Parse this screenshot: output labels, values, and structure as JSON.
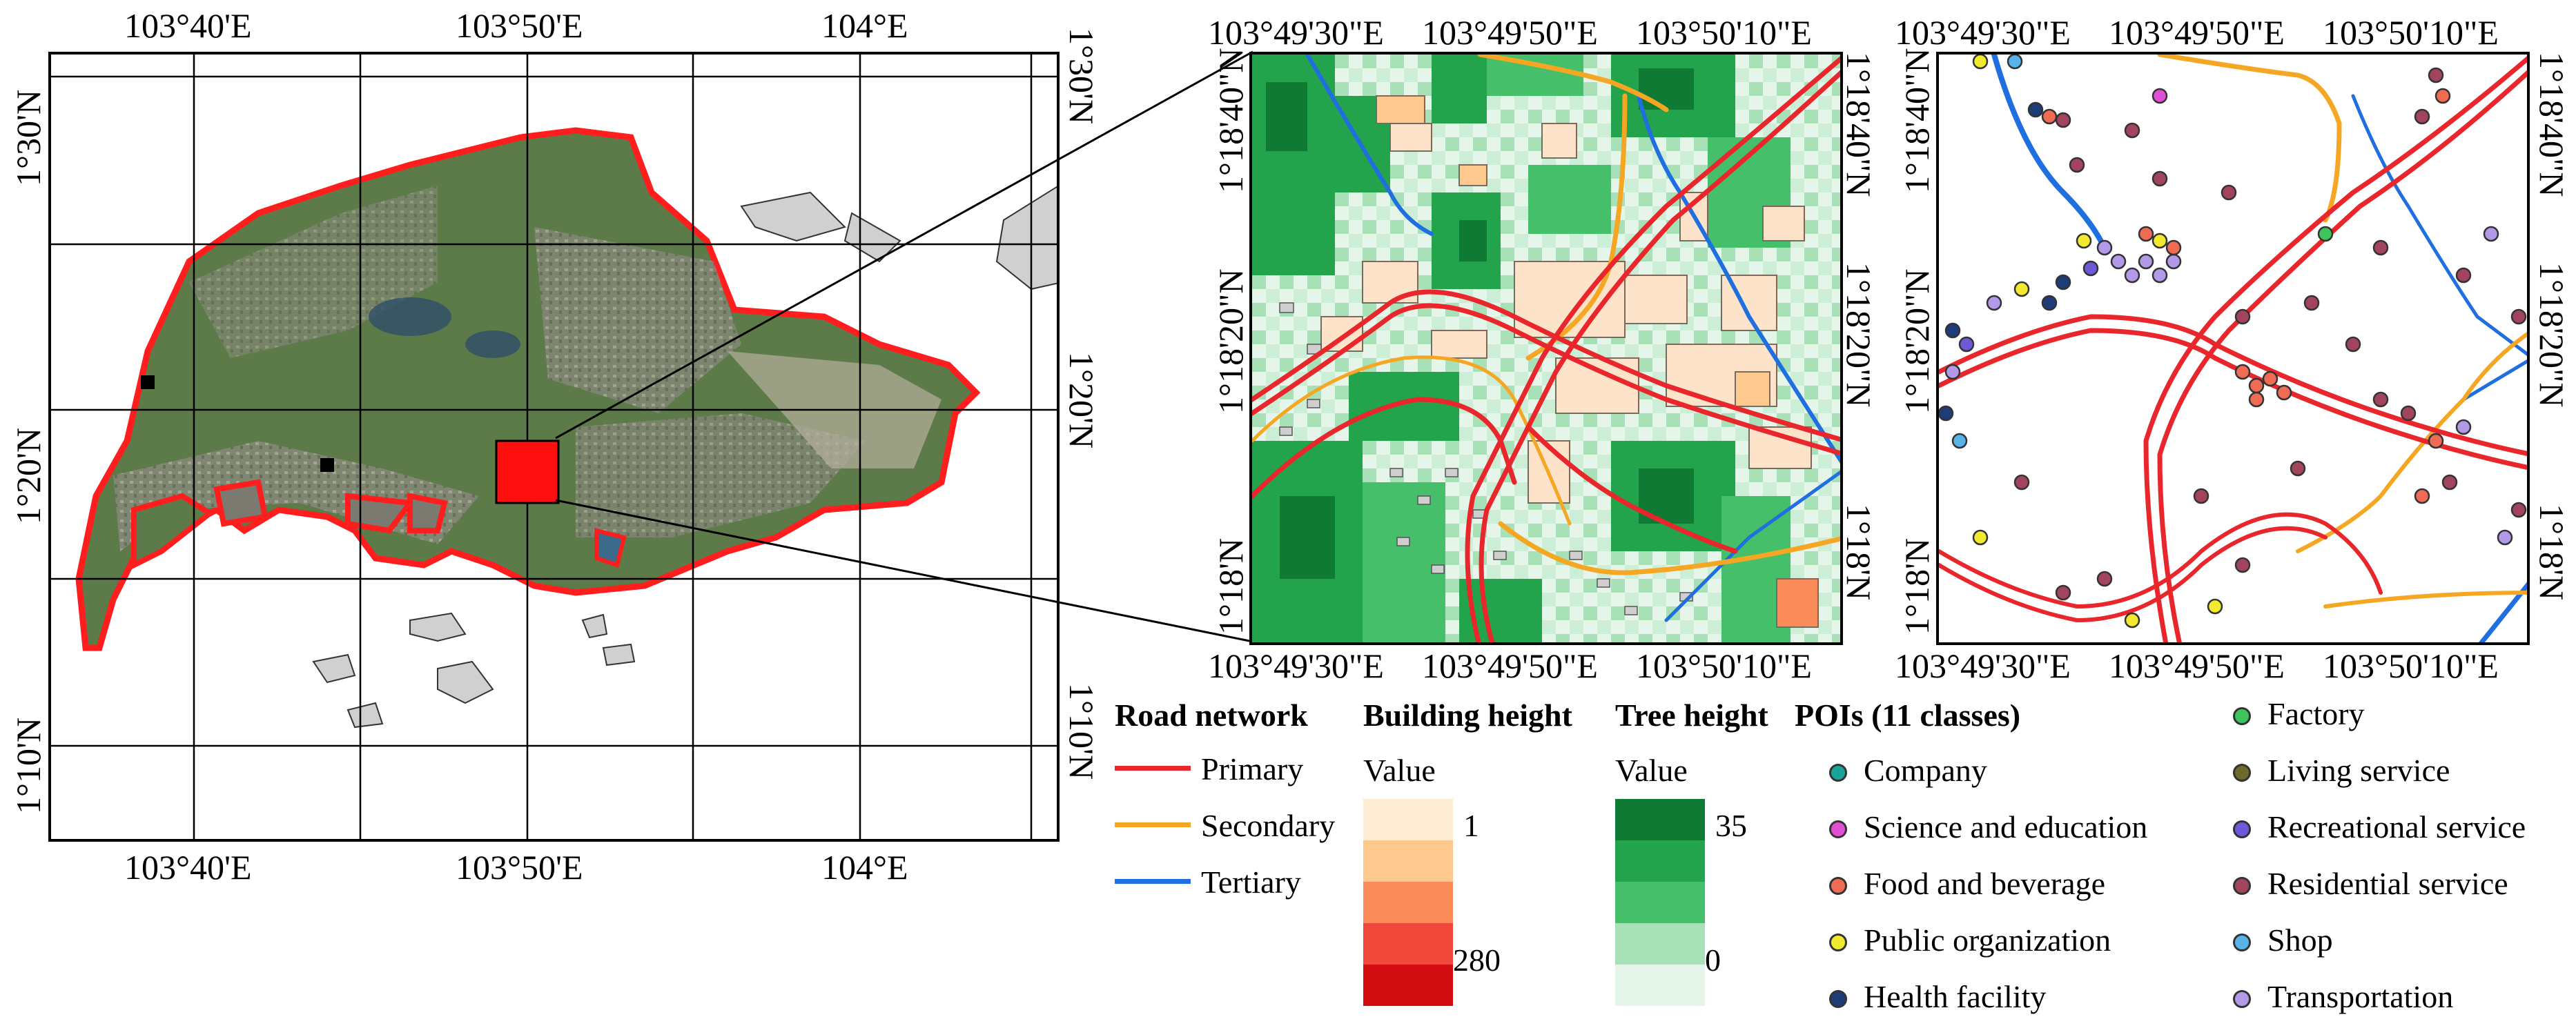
{
  "overview": {
    "top_ticks": [
      "103°40'E",
      "103°50'E",
      "104°E"
    ],
    "bottom_ticks": [
      "103°40'E",
      "103°50'E",
      "104°E"
    ],
    "left_ticks": [
      "1°30'N",
      "1°20'N",
      "1°10'N"
    ],
    "right_ticks": [
      "1°30'N",
      "1°20'N",
      "1°10'N"
    ]
  },
  "zoom_left": {
    "top_ticks": [
      "103°49'30\"E",
      "103°49'50\"E",
      "103°50'10\"E"
    ],
    "bottom_ticks": [
      "103°49'30\"E",
      "103°49'50\"E",
      "103°50'10\"E"
    ],
    "left_ticks": [
      "1°18'40\"N",
      "1°18'20\"N",
      "1°18'N"
    ],
    "right_ticks": [
      "1°18'40\"N",
      "1°18'20\"N",
      "1°18'N"
    ]
  },
  "zoom_right": {
    "top_ticks": [
      "103°49'30\"E",
      "103°49'50\"E",
      "103°50'10\"E"
    ],
    "bottom_ticks": [
      "103°49'30\"E",
      "103°49'50\"E",
      "103°50'10\"E"
    ],
    "left_ticks": [
      "1°18'40\"N",
      "1°18'20\"N",
      "1°18'N"
    ],
    "right_ticks": [
      "1°18'40\"N",
      "1°18'20\"N",
      "1°18'N"
    ]
  },
  "legend": {
    "road": {
      "title": "Road network",
      "items": [
        {
          "label": "Primary",
          "color": "#e8262b"
        },
        {
          "label": "Secondary",
          "color": "#f5a623"
        },
        {
          "label": "Tertiary",
          "color": "#1f6fe0"
        }
      ]
    },
    "building": {
      "title": "Building height",
      "value_label": "Value",
      "min": "1",
      "max": "280",
      "colors": [
        "#fdebd2",
        "#fdc98f",
        "#fb8c5a",
        "#f0483a",
        "#d10d12"
      ]
    },
    "tree": {
      "title": "Tree height",
      "value_label": "Value",
      "max": "35",
      "min": "0",
      "colors": [
        "#0f7a34",
        "#22a34c",
        "#46bf6b",
        "#a8e0b8",
        "#e6f5e9"
      ]
    },
    "poi": {
      "title": "POIs (11 classes)",
      "items": [
        {
          "label": "Company",
          "color": "#1aa39a"
        },
        {
          "label": "Science and education",
          "color": "#e04fd4"
        },
        {
          "label": "Food and beverage",
          "color": "#ef6b54"
        },
        {
          "label": "Public organization",
          "color": "#f2ea2e"
        },
        {
          "label": "Health facility",
          "color": "#1f3c7a"
        },
        {
          "label": "Factory",
          "color": "#3dc45a"
        },
        {
          "label": "Living service",
          "color": "#6b6b2c"
        },
        {
          "label": "Recreational service",
          "color": "#6c5ad8"
        },
        {
          "label": "Residential service",
          "color": "#a3445e"
        },
        {
          "label": "Shop",
          "color": "#5ab3e8"
        },
        {
          "label": "Transportation",
          "color": "#b39ae8"
        }
      ]
    }
  }
}
